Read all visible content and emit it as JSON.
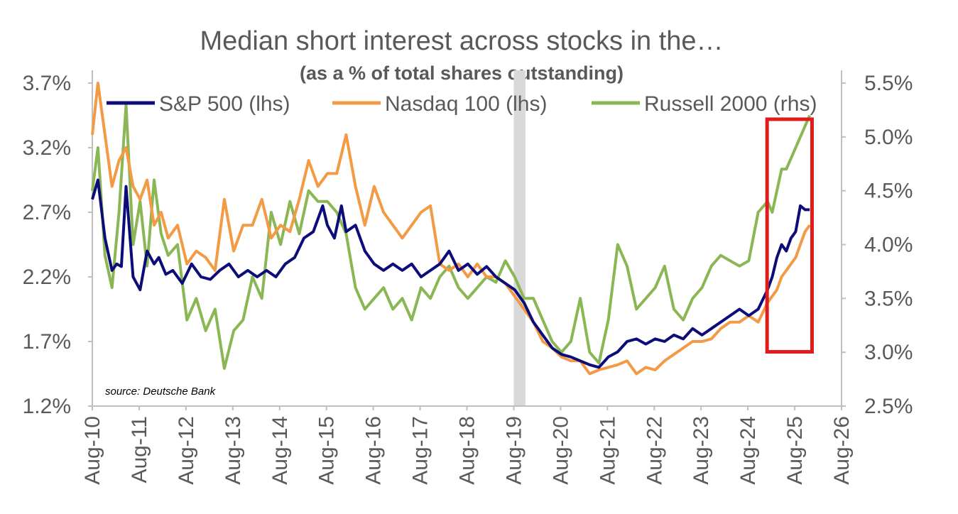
{
  "colors": {
    "sp500": "#0d0d7a",
    "nasdaq": "#f39a45",
    "russell": "#8ab754",
    "shade": "#d9d9d9",
    "highlight": "#e01b1b",
    "axis": "#bfbfbf",
    "text": "#595959"
  },
  "chart_data": {
    "type": "line",
    "title": "Median short interest across stocks in the…",
    "subtitle": "(as a % of total shares outstanding)",
    "source": "source: Deutsche Bank",
    "x_ticks": [
      "Aug-10",
      "Aug-11",
      "Aug-12",
      "Aug-13",
      "Aug-14",
      "Aug-15",
      "Aug-16",
      "Aug-17",
      "Aug-18",
      "Aug-19",
      "Aug-20",
      "Aug-21",
      "Aug-22",
      "Aug-23",
      "Aug-24",
      "Aug-25",
      "Aug-26"
    ],
    "x_range": [
      2010.58,
      2026.58
    ],
    "y_left": {
      "ticks": [
        "1.2%",
        "1.7%",
        "2.2%",
        "2.7%",
        "3.2%",
        "3.7%"
      ],
      "ylim": [
        1.2,
        3.7
      ]
    },
    "y_right": {
      "ticks": [
        "2.5%",
        "3.0%",
        "3.5%",
        "4.0%",
        "4.5%",
        "5.0%",
        "5.5%"
      ],
      "ylim": [
        2.5,
        5.5
      ]
    },
    "shaded_region": [
      2019.58,
      2019.83
    ],
    "highlight_box": {
      "x": [
        2024.99,
        2025.95
      ],
      "y_left": [
        1.62,
        3.42
      ]
    },
    "legend_position": "top",
    "series": [
      {
        "name": "S&P 500 (lhs)",
        "axis": "left",
        "x": [
          2010.58,
          2010.7,
          2010.85,
          2011.0,
          2011.1,
          2011.2,
          2011.3,
          2011.45,
          2011.6,
          2011.75,
          2011.9,
          2012.0,
          2012.15,
          2012.3,
          2012.5,
          2012.7,
          2012.9,
          2013.1,
          2013.3,
          2013.5,
          2013.7,
          2013.9,
          2014.1,
          2014.3,
          2014.5,
          2014.7,
          2014.9,
          2015.1,
          2015.3,
          2015.5,
          2015.6,
          2015.75,
          2015.9,
          2016.0,
          2016.2,
          2016.4,
          2016.6,
          2016.8,
          2017.0,
          2017.2,
          2017.4,
          2017.6,
          2017.8,
          2018.0,
          2018.2,
          2018.4,
          2018.6,
          2018.8,
          2019.0,
          2019.2,
          2019.4,
          2019.6,
          2019.8,
          2020.0,
          2020.2,
          2020.4,
          2020.6,
          2020.8,
          2021.0,
          2021.2,
          2021.4,
          2021.6,
          2021.8,
          2022.0,
          2022.2,
          2022.4,
          2022.6,
          2022.8,
          2023.0,
          2023.2,
          2023.4,
          2023.6,
          2023.8,
          2024.0,
          2024.2,
          2024.4,
          2024.6,
          2024.8,
          2025.0,
          2025.1,
          2025.2,
          2025.3,
          2025.4,
          2025.5,
          2025.6,
          2025.7,
          2025.8,
          2025.9
        ],
        "y": [
          2.8,
          2.95,
          2.5,
          2.25,
          2.3,
          2.28,
          2.9,
          2.2,
          2.1,
          2.4,
          2.3,
          2.35,
          2.22,
          2.25,
          2.15,
          2.3,
          2.2,
          2.18,
          2.25,
          2.3,
          2.2,
          2.25,
          2.2,
          2.25,
          2.2,
          2.3,
          2.35,
          2.5,
          2.55,
          2.75,
          2.6,
          2.5,
          2.75,
          2.55,
          2.6,
          2.4,
          2.3,
          2.25,
          2.3,
          2.25,
          2.3,
          2.2,
          2.25,
          2.3,
          2.4,
          2.25,
          2.3,
          2.22,
          2.28,
          2.2,
          2.15,
          2.1,
          2.0,
          1.85,
          1.75,
          1.65,
          1.6,
          1.58,
          1.55,
          1.52,
          1.5,
          1.58,
          1.62,
          1.7,
          1.72,
          1.68,
          1.72,
          1.7,
          1.75,
          1.72,
          1.8,
          1.75,
          1.8,
          1.85,
          1.9,
          1.95,
          1.9,
          1.95,
          2.1,
          2.2,
          2.35,
          2.45,
          2.4,
          2.5,
          2.55,
          2.75,
          2.72,
          2.72
        ]
      },
      {
        "name": "Nasdaq 100 (lhs)",
        "axis": "left",
        "x": [
          2010.58,
          2010.7,
          2010.85,
          2011.0,
          2011.15,
          2011.3,
          2011.45,
          2011.6,
          2011.75,
          2011.9,
          2012.05,
          2012.2,
          2012.4,
          2012.6,
          2012.8,
          2013.0,
          2013.2,
          2013.4,
          2013.6,
          2013.8,
          2014.0,
          2014.2,
          2014.4,
          2014.6,
          2014.8,
          2015.0,
          2015.2,
          2015.4,
          2015.6,
          2015.8,
          2016.0,
          2016.2,
          2016.4,
          2016.6,
          2016.8,
          2017.0,
          2017.2,
          2017.4,
          2017.6,
          2017.8,
          2018.0,
          2018.2,
          2018.4,
          2018.6,
          2018.8,
          2019.0,
          2019.2,
          2019.4,
          2019.6,
          2019.8,
          2020.0,
          2020.2,
          2020.4,
          2020.6,
          2020.8,
          2021.0,
          2021.2,
          2021.4,
          2021.6,
          2021.8,
          2022.0,
          2022.2,
          2022.4,
          2022.6,
          2022.8,
          2023.0,
          2023.2,
          2023.4,
          2023.6,
          2023.8,
          2024.0,
          2024.2,
          2024.4,
          2024.6,
          2024.8,
          2025.0,
          2025.1,
          2025.2,
          2025.3,
          2025.4,
          2025.5,
          2025.6,
          2025.7,
          2025.8,
          2025.9
        ],
        "y": [
          3.3,
          3.7,
          3.3,
          2.9,
          3.1,
          3.2,
          2.9,
          2.8,
          2.95,
          2.6,
          2.7,
          2.5,
          2.6,
          2.3,
          2.4,
          2.35,
          2.25,
          2.8,
          2.4,
          2.6,
          2.6,
          2.8,
          2.5,
          2.6,
          2.55,
          2.8,
          3.1,
          2.9,
          3.0,
          3.0,
          3.3,
          2.9,
          2.6,
          2.9,
          2.7,
          2.6,
          2.5,
          2.6,
          2.7,
          2.75,
          2.3,
          2.25,
          2.3,
          2.2,
          2.3,
          2.2,
          2.2,
          2.15,
          2.05,
          1.95,
          1.85,
          1.7,
          1.65,
          1.58,
          1.55,
          1.55,
          1.45,
          1.48,
          1.5,
          1.52,
          1.55,
          1.45,
          1.5,
          1.48,
          1.55,
          1.6,
          1.65,
          1.7,
          1.7,
          1.72,
          1.8,
          1.85,
          1.85,
          1.9,
          1.85,
          2.0,
          2.05,
          2.1,
          2.2,
          2.25,
          2.3,
          2.35,
          2.45,
          2.55,
          2.6
        ]
      },
      {
        "name": "Russell 2000 (rhs)",
        "axis": "right",
        "x": [
          2010.58,
          2010.7,
          2010.85,
          2011.0,
          2011.15,
          2011.3,
          2011.45,
          2011.6,
          2011.75,
          2011.9,
          2012.05,
          2012.2,
          2012.4,
          2012.6,
          2012.8,
          2013.0,
          2013.2,
          2013.4,
          2013.6,
          2013.8,
          2014.0,
          2014.2,
          2014.4,
          2014.6,
          2014.8,
          2015.0,
          2015.2,
          2015.4,
          2015.6,
          2015.8,
          2016.0,
          2016.2,
          2016.4,
          2016.6,
          2016.8,
          2017.0,
          2017.2,
          2017.4,
          2017.6,
          2017.8,
          2018.0,
          2018.2,
          2018.4,
          2018.6,
          2018.8,
          2019.0,
          2019.2,
          2019.4,
          2019.6,
          2019.8,
          2020.0,
          2020.2,
          2020.4,
          2020.6,
          2020.8,
          2021.0,
          2021.2,
          2021.4,
          2021.6,
          2021.8,
          2022.0,
          2022.2,
          2022.4,
          2022.6,
          2022.8,
          2023.0,
          2023.2,
          2023.4,
          2023.6,
          2023.8,
          2024.0,
          2024.2,
          2024.4,
          2024.6,
          2024.8,
          2025.0,
          2025.1,
          2025.2,
          2025.3,
          2025.4,
          2025.5,
          2025.6,
          2025.7,
          2025.8,
          2025.9
        ],
        "y": [
          4.5,
          4.9,
          3.9,
          3.6,
          4.3,
          5.3,
          4.0,
          4.4,
          3.8,
          4.6,
          4.1,
          3.9,
          4.0,
          3.3,
          3.5,
          3.2,
          3.4,
          2.85,
          3.2,
          3.3,
          3.7,
          3.5,
          4.3,
          4.0,
          4.4,
          4.1,
          4.5,
          4.4,
          4.4,
          4.3,
          4.1,
          3.6,
          3.4,
          3.5,
          3.6,
          3.4,
          3.5,
          3.3,
          3.6,
          3.5,
          3.7,
          3.8,
          3.6,
          3.5,
          3.6,
          3.7,
          3.65,
          3.85,
          3.7,
          3.5,
          3.5,
          3.3,
          3.1,
          3.0,
          3.1,
          3.5,
          3.0,
          2.9,
          3.3,
          4.0,
          3.8,
          3.4,
          3.5,
          3.6,
          3.8,
          3.4,
          3.3,
          3.5,
          3.6,
          3.8,
          3.9,
          3.85,
          3.8,
          3.85,
          4.3,
          4.4,
          4.3,
          4.5,
          4.7,
          4.7,
          4.8,
          4.9,
          5.0,
          5.1,
          5.2
        ]
      }
    ]
  }
}
